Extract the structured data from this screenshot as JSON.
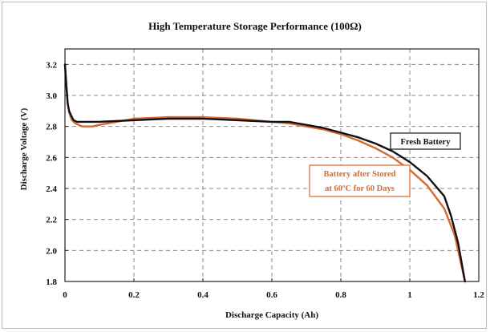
{
  "chart_data": {
    "type": "line",
    "title": "High Temperature Storage Performance (100Ω)",
    "xlabel": "Discharge Capacity (Ah)",
    "ylabel": "Discharge Voltage (V)",
    "xlim": [
      0,
      1.2
    ],
    "ylim": [
      1.8,
      3.3
    ],
    "xticks": [
      0,
      0.2,
      0.4,
      0.6,
      0.8,
      1,
      1.2
    ],
    "xtick_labels": [
      "0",
      "0.2",
      "0.4",
      "0.6",
      "0.8",
      "1",
      "1.2"
    ],
    "yticks": [
      1.8,
      2.0,
      2.2,
      2.4,
      2.6,
      2.8,
      3.0,
      3.2
    ],
    "ytick_labels": [
      "1.8",
      "2.0",
      "2.2",
      "2.4",
      "2.6",
      "2.8",
      "3.0",
      "3.2"
    ],
    "grid": true,
    "series": [
      {
        "name": "Fresh Battery",
        "color": "#111111",
        "x": [
          0,
          0.004,
          0.008,
          0.012,
          0.018,
          0.025,
          0.035,
          0.05,
          0.1,
          0.2,
          0.3,
          0.4,
          0.5,
          0.6,
          0.65,
          0.7,
          0.75,
          0.8,
          0.85,
          0.9,
          0.95,
          1.0,
          1.05,
          1.1,
          1.12,
          1.14,
          1.16
        ],
        "y": [
          3.2,
          3.06,
          2.95,
          2.9,
          2.87,
          2.84,
          2.83,
          2.83,
          2.83,
          2.84,
          2.85,
          2.85,
          2.84,
          2.83,
          2.83,
          2.81,
          2.79,
          2.76,
          2.73,
          2.69,
          2.64,
          2.57,
          2.48,
          2.35,
          2.22,
          2.05,
          1.8
        ]
      },
      {
        "name": "Battery after Stored at 60ºC for 60 Days",
        "color": "#d8692e",
        "x": [
          0,
          0.004,
          0.008,
          0.012,
          0.02,
          0.03,
          0.05,
          0.08,
          0.1,
          0.15,
          0.2,
          0.3,
          0.4,
          0.5,
          0.6,
          0.65,
          0.7,
          0.75,
          0.8,
          0.85,
          0.9,
          0.95,
          1.0,
          1.05,
          1.1,
          1.13,
          1.16
        ],
        "y": [
          3.2,
          3.08,
          2.95,
          2.89,
          2.84,
          2.82,
          2.8,
          2.8,
          2.81,
          2.83,
          2.85,
          2.86,
          2.86,
          2.85,
          2.83,
          2.82,
          2.8,
          2.78,
          2.75,
          2.71,
          2.66,
          2.6,
          2.52,
          2.42,
          2.27,
          2.1,
          1.8
        ]
      }
    ],
    "annotations": [
      {
        "text": "Fresh Battery",
        "color": "#111111",
        "box": true
      },
      {
        "text": "Battery after Stored",
        "color": "#d8692e",
        "box": true
      },
      {
        "text": "at 60ºC for 60 Days",
        "color": "#d8692e",
        "box": true
      }
    ]
  }
}
